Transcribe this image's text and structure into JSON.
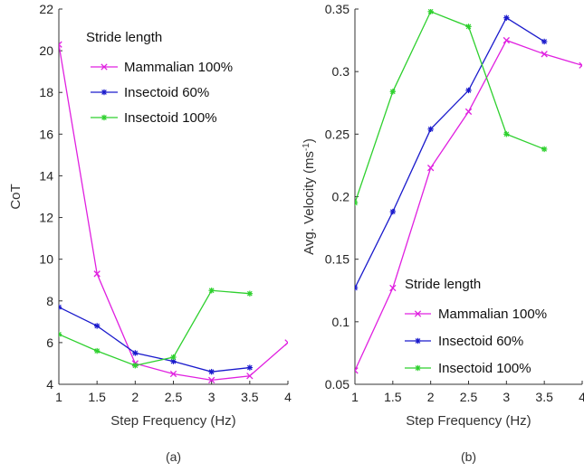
{
  "chart_data": [
    {
      "type": "line",
      "panel_caption": "(a)",
      "xlabel": "Step Frequency (Hz)",
      "ylabel": "CoT",
      "xlim": [
        1,
        4
      ],
      "ylim": [
        4,
        22
      ],
      "xticks": [
        1,
        1.5,
        2,
        2.5,
        3,
        3.5,
        4
      ],
      "xtick_labels": [
        "1",
        "1.5",
        "2",
        "2.5",
        "3",
        "3.5",
        "4"
      ],
      "yticks": [
        4,
        6,
        8,
        10,
        12,
        14,
        16,
        18,
        20,
        22
      ],
      "ytick_labels": [
        "4",
        "6",
        "8",
        "10",
        "12",
        "14",
        "16",
        "18",
        "20",
        "22"
      ],
      "legend_title": "Stride length",
      "legend_position": "top",
      "series": [
        {
          "name": "Mammalian 100%",
          "color": "#e020e0",
          "marker": "x",
          "x": [
            1,
            1.5,
            2,
            2.5,
            3,
            3.5,
            4
          ],
          "y": [
            20.3,
            9.3,
            5.0,
            4.5,
            4.2,
            4.4,
            6.0
          ]
        },
        {
          "name": "Insectoid 60%",
          "color": "#1a1acc",
          "marker": "star",
          "x": [
            1,
            1.5,
            2,
            2.5,
            3,
            3.5
          ],
          "y": [
            7.7,
            6.8,
            5.5,
            5.1,
            4.6,
            4.8
          ]
        },
        {
          "name": "Insectoid 100%",
          "color": "#2ed02e",
          "marker": "star",
          "x": [
            1,
            1.5,
            2,
            2.5,
            3,
            3.5
          ],
          "y": [
            6.4,
            5.6,
            4.9,
            5.3,
            8.5,
            8.35
          ]
        }
      ]
    },
    {
      "type": "line",
      "panel_caption": "(b)",
      "xlabel": "Step Frequency (Hz)",
      "ylabel": "Avg. Velocity (ms",
      "ylabel_sup": "-1",
      "ylabel_close": ")",
      "xlim": [
        1,
        4
      ],
      "ylim": [
        0.05,
        0.35
      ],
      "xticks": [
        1,
        1.5,
        2,
        2.5,
        3,
        3.5,
        4
      ],
      "xtick_labels": [
        "1",
        "1.5",
        "2",
        "2.5",
        "3",
        "3.5",
        "4"
      ],
      "yticks": [
        0.05,
        0.1,
        0.15,
        0.2,
        0.25,
        0.3,
        0.35
      ],
      "ytick_labels": [
        "0.05",
        "0.1",
        "0.15",
        "0.2",
        "0.25",
        "0.3",
        "0.35"
      ],
      "legend_title": "Stride length",
      "legend_position": "bottom-right",
      "series": [
        {
          "name": "Mammalian 100%",
          "color": "#e020e0",
          "marker": "x",
          "x": [
            1,
            1.5,
            2,
            2.5,
            3,
            3.5,
            4
          ],
          "y": [
            0.061,
            0.127,
            0.223,
            0.268,
            0.325,
            0.314,
            0.305
          ]
        },
        {
          "name": "Insectoid 60%",
          "color": "#1a1acc",
          "marker": "star",
          "x": [
            1,
            1.5,
            2,
            2.5,
            3,
            3.5
          ],
          "y": [
            0.127,
            0.188,
            0.254,
            0.285,
            0.343,
            0.324
          ]
        },
        {
          "name": "Insectoid 100%",
          "color": "#2ed02e",
          "marker": "star",
          "x": [
            1,
            1.5,
            2,
            2.5,
            3,
            3.5
          ],
          "y": [
            0.195,
            0.284,
            0.348,
            0.336,
            0.25,
            0.238
          ]
        }
      ]
    }
  ]
}
